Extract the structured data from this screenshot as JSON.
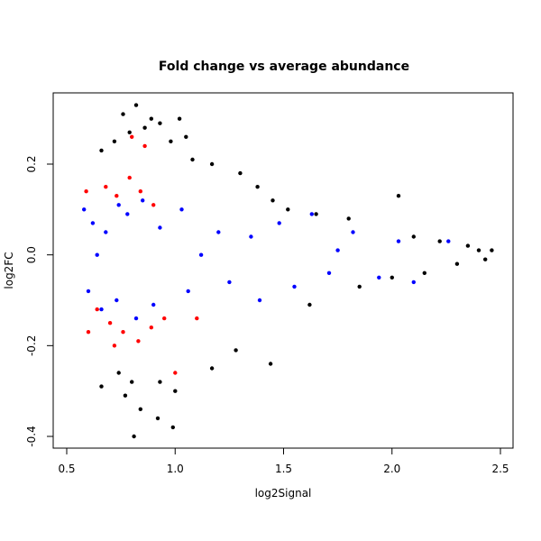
{
  "chart_data": {
    "type": "scatter",
    "title": "Fold change vs average abundance",
    "xlabel": "log2Signal",
    "ylabel": "log2FC",
    "xlim": [
      0.5,
      2.5
    ],
    "ylim": [
      -0.42,
      0.34
    ],
    "x_ticks": [
      0.5,
      1.0,
      1.5,
      2.0,
      2.5
    ],
    "y_ticks": [
      -0.4,
      -0.2,
      0.0,
      0.2
    ],
    "x_tick_labels": [
      "0.5",
      "1.0",
      "1.5",
      "2.0",
      "2.5"
    ],
    "y_tick_labels": [
      "-0.4",
      "-0.2",
      "0.0",
      "0.2"
    ],
    "grid": false,
    "legend": "none",
    "colors": {
      "all": "#000000",
      "highlight_blue": "#0000ff",
      "highlight_red": "#ff0000"
    },
    "series": [
      {
        "color": "#000000",
        "role": "all-points",
        "points": [
          [
            0.82,
            0.33
          ],
          [
            0.76,
            0.31
          ],
          [
            0.89,
            0.3
          ],
          [
            1.02,
            0.3
          ],
          [
            0.93,
            0.29
          ],
          [
            0.86,
            0.28
          ],
          [
            0.79,
            0.27
          ],
          [
            1.05,
            0.26
          ],
          [
            0.72,
            0.25
          ],
          [
            0.98,
            0.25
          ],
          [
            0.66,
            0.23
          ],
          [
            1.08,
            0.21
          ],
          [
            1.17,
            0.2
          ],
          [
            1.3,
            0.18
          ],
          [
            1.38,
            0.15
          ],
          [
            1.45,
            0.12
          ],
          [
            1.52,
            0.1
          ],
          [
            1.65,
            0.09
          ],
          [
            1.8,
            0.08
          ],
          [
            2.03,
            0.13
          ],
          [
            2.1,
            0.04
          ],
          [
            2.22,
            0.03
          ],
          [
            2.35,
            0.02
          ],
          [
            2.4,
            0.01
          ],
          [
            2.46,
            0.01
          ],
          [
            0.74,
            -0.26
          ],
          [
            0.8,
            -0.28
          ],
          [
            0.66,
            -0.29
          ],
          [
            0.77,
            -0.31
          ],
          [
            0.93,
            -0.28
          ],
          [
            1.0,
            -0.3
          ],
          [
            0.84,
            -0.34
          ],
          [
            0.92,
            -0.36
          ],
          [
            0.99,
            -0.38
          ],
          [
            0.81,
            -0.4
          ],
          [
            1.17,
            -0.25
          ],
          [
            1.28,
            -0.21
          ],
          [
            1.44,
            -0.24
          ],
          [
            1.62,
            -0.11
          ],
          [
            1.85,
            -0.07
          ],
          [
            2.0,
            -0.05
          ],
          [
            2.15,
            -0.04
          ],
          [
            2.3,
            -0.02
          ],
          [
            2.43,
            -0.01
          ]
        ]
      },
      {
        "color": "#0000ff",
        "role": "highlighted-blue",
        "points": [
          [
            0.58,
            0.1
          ],
          [
            0.62,
            0.07
          ],
          [
            0.68,
            0.05
          ],
          [
            0.74,
            0.11
          ],
          [
            0.78,
            0.09
          ],
          [
            0.85,
            0.12
          ],
          [
            0.93,
            0.06
          ],
          [
            1.03,
            0.1
          ],
          [
            1.2,
            0.05
          ],
          [
            1.35,
            0.04
          ],
          [
            1.48,
            0.07
          ],
          [
            1.63,
            0.09
          ],
          [
            1.82,
            0.05
          ],
          [
            2.03,
            0.03
          ],
          [
            2.26,
            0.03
          ],
          [
            0.6,
            -0.08
          ],
          [
            0.66,
            -0.12
          ],
          [
            0.73,
            -0.1
          ],
          [
            0.82,
            -0.14
          ],
          [
            0.9,
            -0.11
          ],
          [
            1.06,
            -0.08
          ],
          [
            1.25,
            -0.06
          ],
          [
            1.39,
            -0.1
          ],
          [
            1.55,
            -0.07
          ],
          [
            1.71,
            -0.04
          ],
          [
            1.94,
            -0.05
          ],
          [
            2.1,
            -0.06
          ],
          [
            0.64,
            0.0
          ],
          [
            1.12,
            0.0
          ],
          [
            1.75,
            0.01
          ]
        ]
      },
      {
        "color": "#ff0000",
        "role": "highlighted-red",
        "points": [
          [
            0.8,
            0.26
          ],
          [
            0.86,
            0.24
          ],
          [
            0.68,
            0.15
          ],
          [
            0.73,
            0.13
          ],
          [
            0.79,
            0.17
          ],
          [
            0.84,
            0.14
          ],
          [
            0.9,
            0.11
          ],
          [
            0.59,
            0.14
          ],
          [
            0.64,
            -0.12
          ],
          [
            0.7,
            -0.15
          ],
          [
            0.76,
            -0.17
          ],
          [
            0.83,
            -0.19
          ],
          [
            0.89,
            -0.16
          ],
          [
            0.95,
            -0.14
          ],
          [
            0.72,
            -0.2
          ],
          [
            0.6,
            -0.17
          ],
          [
            1.0,
            -0.26
          ],
          [
            1.1,
            -0.14
          ]
        ]
      }
    ]
  }
}
